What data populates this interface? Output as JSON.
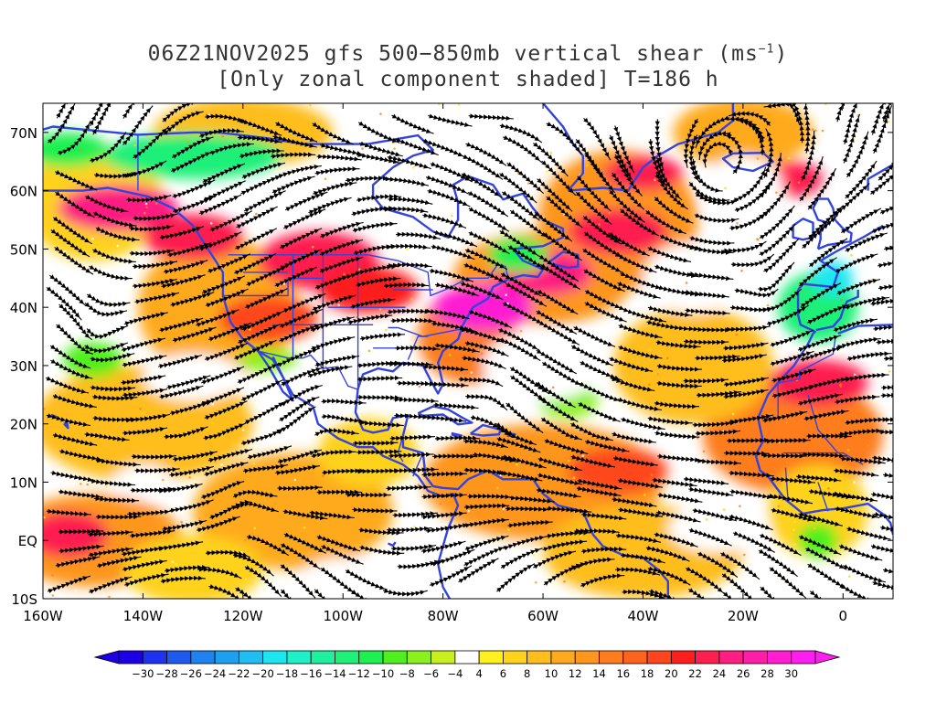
{
  "title": {
    "main": "06Z21NOV2025 gfs 500−850mb vertical shear (ms",
    "sup": "−1",
    "close": ")",
    "sub": "[Only zonal component shaded] T=186 h"
  },
  "map": {
    "lat_labels": [
      "70N",
      "60N",
      "50N",
      "40N",
      "30N",
      "20N",
      "10N",
      "EQ",
      "10S"
    ],
    "lat_values": [
      70,
      60,
      50,
      40,
      30,
      20,
      10,
      0,
      -10
    ],
    "lon_labels": [
      "160W",
      "140W",
      "120W",
      "100W",
      "80W",
      "60W",
      "40W",
      "20W",
      "0"
    ],
    "lon_values": [
      -160,
      -140,
      -120,
      -100,
      -80,
      -60,
      -40,
      -20,
      0
    ],
    "lat_range": [
      -10,
      75
    ],
    "lon_range": [
      -160,
      10
    ],
    "coastline_color": "#3344dd",
    "streamline_color": "#000000"
  },
  "colorbar": {
    "labels": [
      "−30",
      "−28",
      "−26",
      "−24",
      "−22",
      "−20",
      "−18",
      "−16",
      "−14",
      "−12",
      "−10",
      "−8",
      "−6",
      "−4",
      "4",
      "6",
      "8",
      "10",
      "12",
      "14",
      "16",
      "18",
      "20",
      "22",
      "24",
      "26",
      "28",
      "30"
    ],
    "colors": [
      "#1e00e6",
      "#1e32f0",
      "#1e5af0",
      "#1e82f0",
      "#1ea0f0",
      "#1ebef0",
      "#1ee6f0",
      "#1ef0c8",
      "#1ef0a0",
      "#1ef078",
      "#1ef050",
      "#50f01e",
      "#8cf01e",
      "#c8f01e",
      "#ffffff",
      "#fff01e",
      "#ffd21e",
      "#ffbe1e",
      "#ffaa1e",
      "#ff961e",
      "#ff7d1e",
      "#ff641e",
      "#ff461e",
      "#ff1e1e",
      "#ff1e50",
      "#ff1e82",
      "#ff1eaa",
      "#ff1ed2",
      "#ff1ef0"
    ]
  }
}
